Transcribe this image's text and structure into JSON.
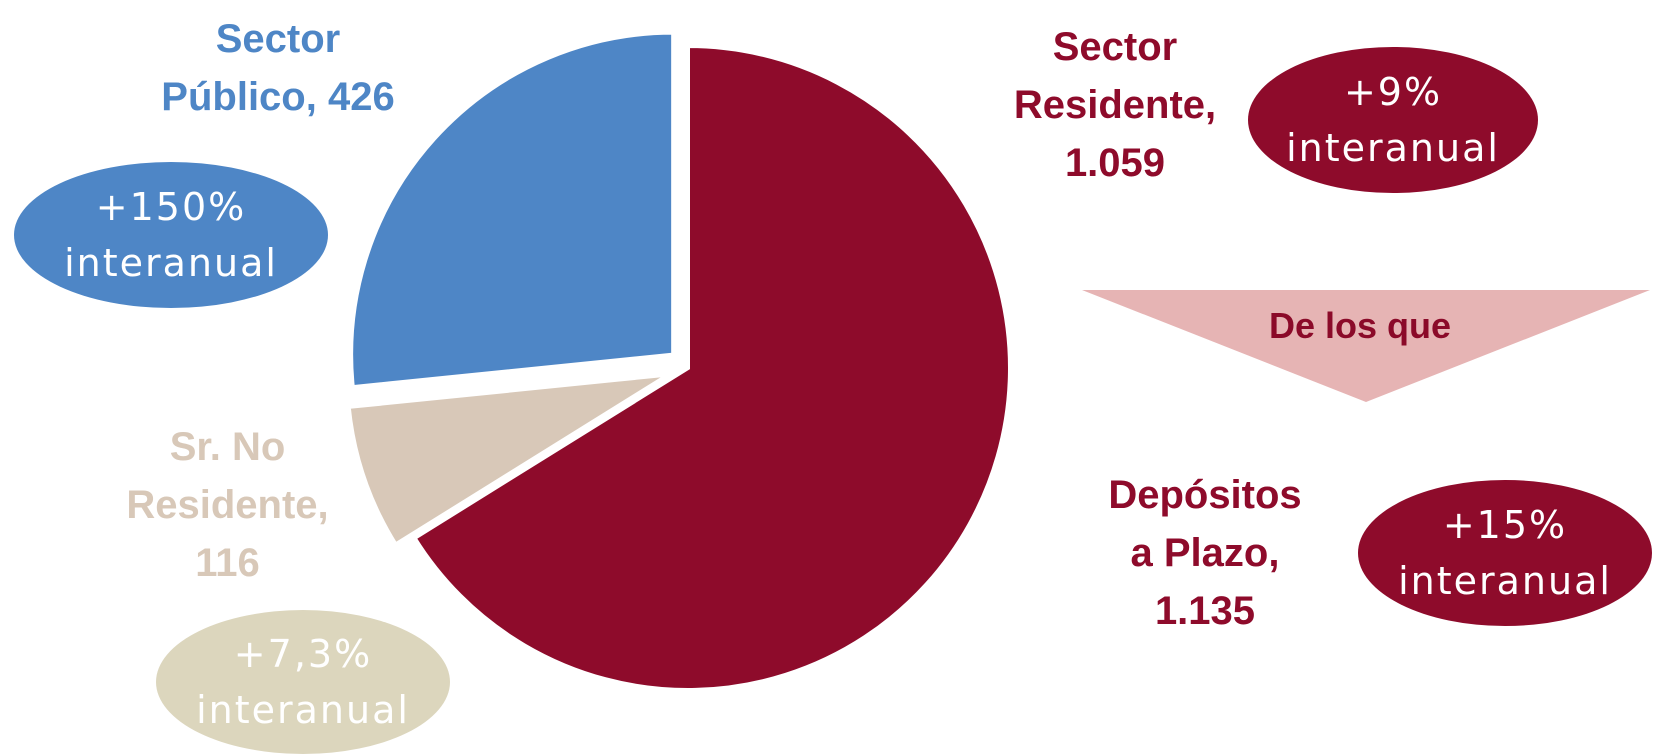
{
  "colors": {
    "residente": "#8e0b2b",
    "publico": "#4e86c6",
    "no_residente": "#d8c8b8",
    "no_residente_badge": "#dcd6bd",
    "arrow": "#e6b4b4",
    "arrow_text": "#8b0a29"
  },
  "chart_data": {
    "type": "pie",
    "slices": [
      {
        "name": "Sector Residente",
        "value": 1059,
        "display_value": "1.059",
        "color": "#8e0b2b",
        "exploded": false
      },
      {
        "name": "Sr. No Residente",
        "value": 116,
        "display_value": "116",
        "color": "#d8c8b8",
        "exploded": true
      },
      {
        "name": "Sector Público",
        "value": 426,
        "display_value": "426",
        "color": "#4e86c6",
        "exploded": true
      }
    ],
    "start": "top, clockwise"
  },
  "labels": {
    "residente": [
      "Sector",
      "Residente,",
      "1.059"
    ],
    "publico": [
      "Sector",
      "Público, 426"
    ],
    "no_residente": [
      "Sr. No",
      "Residente,",
      "116"
    ],
    "depositos": [
      "Depósitos",
      "a Plazo,",
      "1.135"
    ]
  },
  "badges": {
    "residente": [
      "+9%",
      "interanual"
    ],
    "publico": [
      "+150%",
      "interanual"
    ],
    "no_residente": [
      "+7,3%",
      "interanual"
    ],
    "depositos": [
      "+15%",
      "interanual"
    ]
  },
  "arrow": {
    "label": "De los que"
  }
}
